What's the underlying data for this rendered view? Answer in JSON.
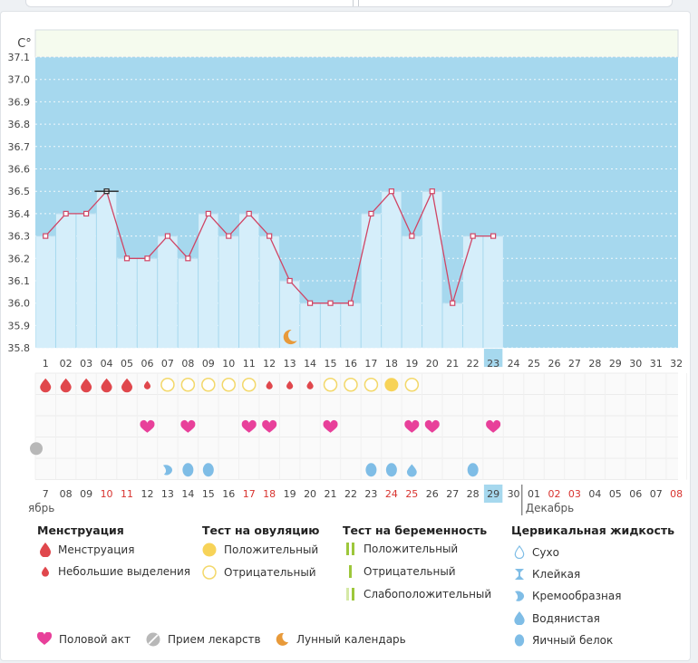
{
  "colors": {
    "band": "#a6d8ee",
    "plot_bg": "#f5fbee",
    "bar": "#d5eefa",
    "line": "#d04565",
    "menstruation": "#e0474c",
    "ovulation_pos": "#f7d358",
    "ovulation_neg": "#f3d86a",
    "pregnancy": "#9dc73b",
    "mucus": "#7fbde6",
    "heart": "#e8409a",
    "moon": "#e89a3a",
    "pill": "#b8b8b8",
    "weekend_red": "#d8332f",
    "highlight": "#a6d8ee"
  },
  "chart_data": {
    "type": "line",
    "title": "",
    "ylabel": "C°",
    "ylim": [
      35.8,
      37.1
    ],
    "cover_top": 37.1,
    "yticks": [
      "37.1",
      "37.0",
      "36.9",
      "36.8",
      "36.7",
      "36.6",
      "36.5",
      "36.4",
      "36.3",
      "36.2",
      "36.1",
      "36.0",
      "35.9",
      "35.8"
    ],
    "cycle_days": [
      "1",
      "02",
      "03",
      "04",
      "05",
      "06",
      "07",
      "08",
      "09",
      "10",
      "11",
      "12",
      "13",
      "14",
      "15",
      "16",
      "17",
      "18",
      "19",
      "20",
      "21",
      "22",
      "23",
      "24",
      "25",
      "26",
      "27",
      "28",
      "29",
      "30",
      "31",
      "32"
    ],
    "temperatures": [
      36.3,
      36.4,
      36.4,
      36.5,
      36.2,
      36.2,
      36.3,
      36.2,
      36.4,
      36.3,
      36.4,
      36.3,
      36.1,
      36.0,
      36.0,
      36.0,
      36.4,
      36.5,
      36.3,
      36.5,
      36.0,
      36.3,
      36.3
    ],
    "highlight_day_index": 22,
    "moon_day_index": 12,
    "rows": {
      "menstruation": [
        "big",
        "big",
        "big",
        "big",
        "big",
        "small",
        "",
        "",
        "",
        "",
        "",
        "small",
        "small",
        "small"
      ],
      "ovulation_test": [
        "",
        "",
        "",
        "",
        "",
        "",
        "neg",
        "neg",
        "neg",
        "neg",
        "neg",
        "",
        "",
        "",
        "neg",
        "neg",
        "neg",
        "pos",
        "neg"
      ],
      "sex": [
        5,
        7,
        10,
        11,
        14,
        18,
        19,
        22
      ],
      "pill": [
        0
      ],
      "mucus": {
        "6": "creamy",
        "7": "egg",
        "8": "egg",
        "16": "egg",
        "17": "egg",
        "18": "watery",
        "21": "egg"
      }
    },
    "dates": [
      "7",
      "08",
      "09",
      "10",
      "11",
      "12",
      "13",
      "14",
      "15",
      "16",
      "17",
      "18",
      "19",
      "20",
      "21",
      "22",
      "23",
      "24",
      "25",
      "26",
      "27",
      "28",
      "29",
      "30",
      "01",
      "02",
      "03",
      "04",
      "05",
      "06",
      "07",
      "08"
    ],
    "red_date_indices": [
      3,
      4,
      10,
      11,
      17,
      18,
      25,
      26,
      31
    ],
    "date_highlight_index": 22,
    "month_left": "ябрь",
    "month_right": "Декабрь"
  },
  "legend": {
    "menstruation": {
      "title": "Менструация",
      "items": [
        "Менструация",
        "Небольшие выделения"
      ]
    },
    "ovulation": {
      "title": "Тест на овуляцию",
      "items": [
        "Положительный",
        "Отрицательный"
      ]
    },
    "pregnancy": {
      "title": "Тест на беременность",
      "items": [
        "Положительный",
        "Отрицательный",
        "Слабоположительный"
      ]
    },
    "mucus": {
      "title": "Цервикальная жидкость",
      "items": [
        "Сухо",
        "Клейкая",
        "Кремообразная",
        "Водянистая",
        "Яичный белок"
      ]
    },
    "bottom": [
      "Половой акт",
      "Прием лекарств",
      "Лунный календарь"
    ]
  }
}
